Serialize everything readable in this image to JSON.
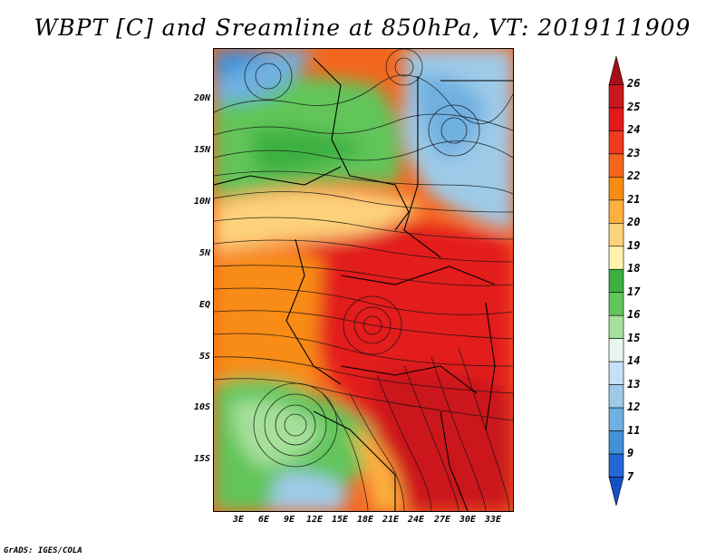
{
  "title": "WBPT [C] and Sreamline at 850hPa, VT: 2019111909",
  "footer": "GrADS: IGES/COLA",
  "lat_labels": [
    "20N",
    "15N",
    "10N",
    "5N",
    "EQ",
    "5S",
    "10S",
    "15S"
  ],
  "lon_labels": [
    "3E",
    "6E",
    "9E",
    "12E",
    "15E",
    "18E",
    "21E",
    "24E",
    "27E",
    "30E",
    "33E"
  ],
  "colorbar": {
    "labels": [
      "26",
      "25",
      "24",
      "23",
      "22",
      "21",
      "20",
      "19",
      "18",
      "17",
      "16",
      "15",
      "14",
      "13",
      "12",
      "11",
      "9",
      "7"
    ],
    "colors": [
      "#a50f15",
      "#cb181d",
      "#e31a1c",
      "#f03b20",
      "#f4661e",
      "#f88c12",
      "#fdb040",
      "#fdd27c",
      "#fef3b0",
      "#3cb043",
      "#62c55a",
      "#a6e09b",
      "#e8f6f0",
      "#c6e0f7",
      "#9ecae8",
      "#6fb0e0",
      "#4191d9",
      "#2468d4",
      "#1650c8"
    ]
  }
}
